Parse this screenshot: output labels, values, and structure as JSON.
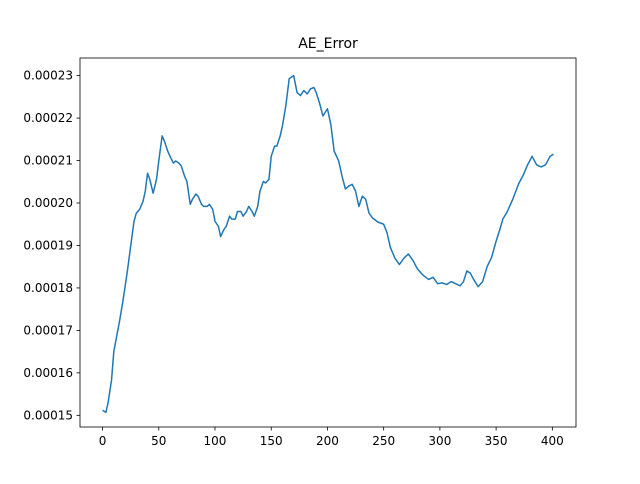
{
  "chart_data": {
    "type": "line",
    "title": "AE_Error",
    "x": [
      0,
      3,
      5,
      8,
      10,
      15,
      18,
      22,
      25,
      28,
      30,
      33,
      36,
      38,
      40,
      42,
      45,
      48,
      50,
      53,
      55,
      58,
      60,
      63,
      65,
      68,
      70,
      73,
      75,
      78,
      80,
      83,
      85,
      88,
      90,
      93,
      95,
      98,
      100,
      103,
      105,
      108,
      110,
      113,
      115,
      118,
      120,
      123,
      125,
      128,
      130,
      133,
      135,
      138,
      140,
      143,
      145,
      148,
      150,
      153,
      155,
      158,
      160,
      163,
      166,
      170,
      173,
      176,
      179,
      182,
      185,
      188,
      190,
      193,
      196,
      200,
      203,
      206,
      210,
      213,
      216,
      219,
      222,
      225,
      228,
      231,
      234,
      237,
      240,
      245,
      250,
      253,
      256,
      260,
      264,
      268,
      272,
      276,
      280,
      285,
      290,
      294,
      298,
      302,
      306,
      310,
      314,
      318,
      321,
      324,
      327,
      330,
      334,
      338,
      342,
      346,
      350,
      353,
      356,
      360,
      365,
      370,
      374,
      378,
      382,
      386,
      390,
      394,
      398,
      401
    ],
    "series": [
      {
        "name": "AE_Error",
        "color": "#1f77b4",
        "values": [
          0.0001512,
          0.0001507,
          0.0001531,
          0.0001583,
          0.000165,
          0.000172,
          0.0001767,
          0.0001838,
          0.0001898,
          0.0001957,
          0.0001976,
          0.0001985,
          0.0002004,
          0.0002028,
          0.000207,
          0.0002056,
          0.0002023,
          0.0002056,
          0.0002099,
          0.0002158,
          0.0002146,
          0.0002122,
          0.000211,
          0.0002094,
          0.0002099,
          0.0002094,
          0.0002087,
          0.0002063,
          0.0002051,
          0.0001997,
          0.0002009,
          0.0002021,
          0.0002016,
          0.0001997,
          0.0001992,
          0.0001992,
          0.0001997,
          0.0001985,
          0.0001957,
          0.0001945,
          0.0001921,
          0.0001938,
          0.0001945,
          0.0001969,
          0.0001962,
          0.0001962,
          0.000198,
          0.000198,
          0.0001969,
          0.000198,
          0.0001992,
          0.000198,
          0.0001969,
          0.0001992,
          0.0002028,
          0.0002051,
          0.0002047,
          0.0002056,
          0.000211,
          0.0002134,
          0.0002134,
          0.0002158,
          0.0002182,
          0.0002229,
          0.0002293,
          0.00023,
          0.000226,
          0.0002253,
          0.0002265,
          0.0002257,
          0.0002269,
          0.0002272,
          0.000226,
          0.0002235,
          0.0002205,
          0.0002222,
          0.0002185,
          0.0002122,
          0.0002099,
          0.0002063,
          0.0002033,
          0.000204,
          0.0002044,
          0.0002028,
          0.0001992,
          0.0002016,
          0.0002009,
          0.0001976,
          0.0001965,
          0.0001955,
          0.000195,
          0.000193,
          0.0001895,
          0.000187,
          0.0001855,
          0.000187,
          0.000188,
          0.0001865,
          0.0001845,
          0.000183,
          0.000182,
          0.0001825,
          0.000181,
          0.0001812,
          0.0001808,
          0.0001815,
          0.000181,
          0.0001805,
          0.0001815,
          0.000184,
          0.0001835,
          0.000182,
          0.0001803,
          0.0001815,
          0.000185,
          0.0001872,
          0.000191,
          0.0001935,
          0.0001962,
          0.000198,
          0.000201,
          0.0002045,
          0.0002065,
          0.000209,
          0.000211,
          0.000209,
          0.0002085,
          0.000209,
          0.000211,
          0.0002115
        ]
      }
    ],
    "xlim": [
      -20.05,
      421.05
    ],
    "ylim": [
      0.00014725,
      0.00023415
    ],
    "xticks": [
      0,
      50,
      100,
      150,
      200,
      250,
      300,
      350,
      400
    ],
    "yticks": [
      0.00015,
      0.00016,
      0.00017,
      0.00018,
      0.00019,
      {
        "value": 0.0002,
        "label": "0.00020"
      },
      0.00021,
      0.00022,
      0.00023
    ],
    "grid": false
  }
}
